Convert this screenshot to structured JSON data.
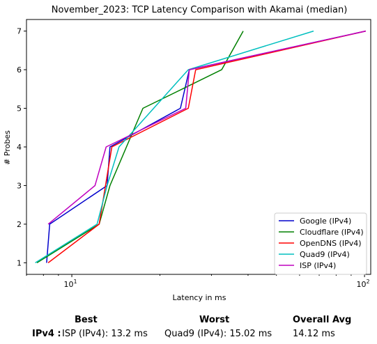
{
  "chart_data": {
    "type": "line",
    "title": "November_2023: TCP Latency Comparison with Akamai (median)",
    "xlabel": "Latency in ms",
    "ylabel": "# Probes",
    "xscale": "log",
    "xlim": [
      7,
      105
    ],
    "ylim": [
      0.7,
      7.3
    ],
    "xticks": [
      {
        "value": 10,
        "base": "10",
        "exp": "1"
      },
      {
        "value": 100,
        "base": "10",
        "exp": "2"
      }
    ],
    "yticks": [
      1,
      2,
      3,
      4,
      5,
      6,
      7
    ],
    "grid": false,
    "legend": "bottom-right",
    "series": [
      {
        "name": "Google (IPv4)",
        "color": "#0000cc",
        "points": [
          [
            8.2,
            1
          ],
          [
            8.4,
            2
          ],
          [
            13.2,
            3
          ],
          [
            13.5,
            4
          ],
          [
            23.5,
            5
          ],
          [
            25.2,
            6
          ],
          [
            101,
            7
          ]
        ]
      },
      {
        "name": "Cloudflare (IPv4)",
        "color": "#008000",
        "points": [
          [
            7.6,
            1
          ],
          [
            12.4,
            2
          ],
          [
            13.5,
            3
          ],
          [
            17.5,
            5
          ],
          [
            32.5,
            6
          ],
          [
            38.5,
            7
          ]
        ]
      },
      {
        "name": "OpenDNS (IPv4)",
        "color": "#ff0000",
        "points": [
          [
            8.3,
            1
          ],
          [
            12.4,
            2
          ],
          [
            13.7,
            4
          ],
          [
            25,
            5
          ],
          [
            26.5,
            6
          ],
          [
            101,
            7
          ]
        ]
      },
      {
        "name": "Quad9 (IPv4)",
        "color": "#00bfbf",
        "points": [
          [
            7.5,
            1
          ],
          [
            12.2,
            2
          ],
          [
            13.2,
            3
          ],
          [
            14.5,
            4
          ],
          [
            25,
            6
          ],
          [
            67,
            7
          ]
        ]
      },
      {
        "name": "ISP (IPv4)",
        "color": "#bf00bf",
        "points": [
          [
            8.3,
            2
          ],
          [
            12,
            3
          ],
          [
            13.1,
            4
          ],
          [
            24.5,
            5
          ],
          [
            25.2,
            6
          ],
          [
            101,
            7
          ]
        ]
      }
    ]
  },
  "summary": {
    "best_header": "Best",
    "worst_header": "Worst",
    "avg_header": "Overall Avg",
    "row_label": "IPv4 :",
    "best_value": "ISP (IPv4): 13.2 ms",
    "worst_value": "Quad9 (IPv4): 15.02 ms",
    "avg_value": "14.12 ms"
  }
}
